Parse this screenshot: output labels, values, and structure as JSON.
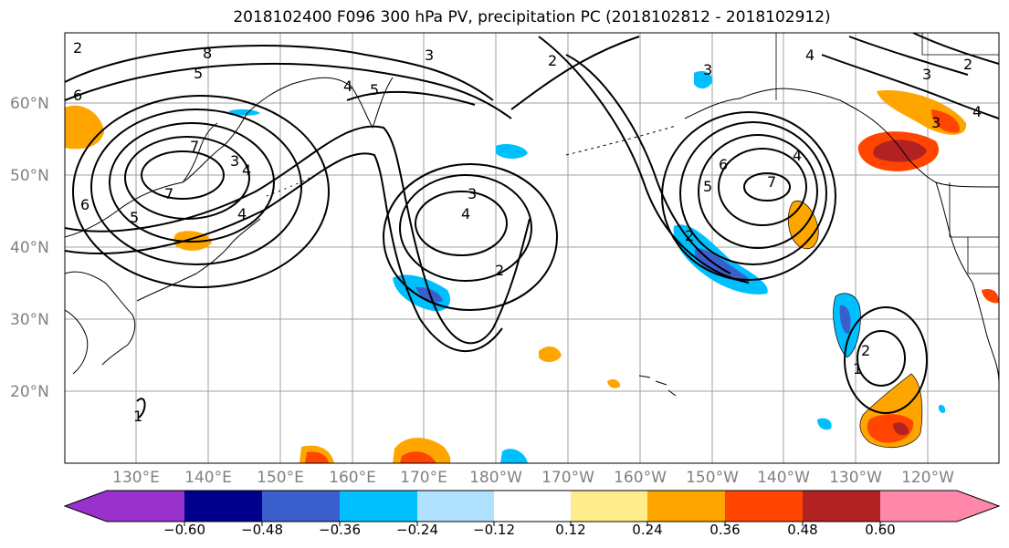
{
  "title": "2018102400 F096 300 hPa PV, precipitation PC (2018102812 - 2018102912)",
  "lat_labels": [
    "60°N",
    "50°N",
    "40°N",
    "30°N",
    "20°N"
  ],
  "lon_labels": [
    "130°E",
    "140°E",
    "150°E",
    "160°E",
    "170°E",
    "180°W",
    "170°W",
    "160°W",
    "150°W",
    "140°W",
    "130°W",
    "120°W"
  ],
  "colorbar": {
    "colors": [
      "#9932cc",
      "#00008b",
      "#3a5fcd",
      "#00bfff",
      "#b0e2ff",
      "#ffffff",
      "#ffec8b",
      "#ffa500",
      "#ff4500",
      "#b22222",
      "#ff88aa"
    ],
    "tick_labels": [
      "−0.60",
      "−0.48",
      "−0.36",
      "−0.24",
      "−0.12",
      "0.12",
      "0.24",
      "0.36",
      "0.48",
      "0.60"
    ]
  },
  "contour_labels": [
    "8",
    "3",
    "4",
    "5",
    "4",
    "3",
    "2",
    "6",
    "5",
    "7",
    "4",
    "3",
    "3",
    "4",
    "2",
    "3",
    "6",
    "5",
    "7",
    "4",
    "2",
    "3",
    "4",
    "2",
    "4",
    "5",
    "7",
    "6",
    "2",
    "2",
    "1",
    "1"
  ]
}
